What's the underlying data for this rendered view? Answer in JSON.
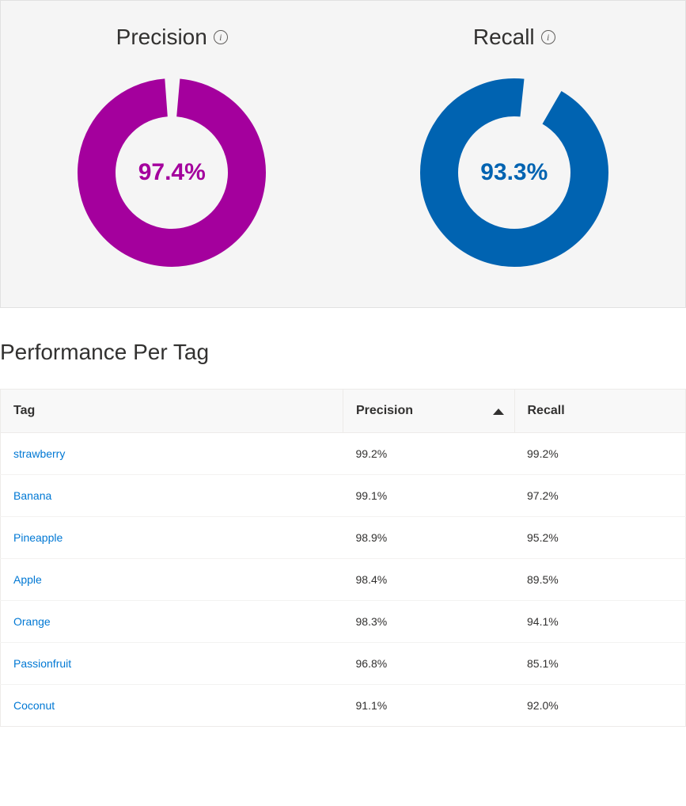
{
  "metrics": {
    "precision": {
      "label": "Precision",
      "value_text": "97.4%",
      "value_pct": 97.4,
      "color": "#a4009d",
      "text_color": "#a4009d",
      "gap_rotation_deg": 5,
      "donut_stroke_width": 48,
      "donut_radius": 95,
      "donut_size": 240,
      "value_fontsize": 30
    },
    "recall": {
      "label": "Recall",
      "value_text": "93.3%",
      "value_pct": 93.3,
      "color": "#0063b1",
      "text_color": "#0063b1",
      "gap_rotation_deg": 30,
      "donut_stroke_width": 48,
      "donut_radius": 95,
      "donut_size": 240,
      "value_fontsize": 30
    },
    "title_fontsize": 28,
    "background_color": "#f5f5f5"
  },
  "table": {
    "section_title": "Performance Per Tag",
    "columns": {
      "tag": "Tag",
      "precision": "Precision",
      "recall": "Recall"
    },
    "sorted_by": "precision",
    "sort_direction": "desc",
    "header_bg": "#f8f8f8",
    "link_color": "#0078d4",
    "rows": [
      {
        "tag": "strawberry",
        "precision": "99.2%",
        "recall": "99.2%"
      },
      {
        "tag": "Banana",
        "precision": "99.1%",
        "recall": "97.2%"
      },
      {
        "tag": "Pineapple",
        "precision": "98.9%",
        "recall": "95.2%"
      },
      {
        "tag": "Apple",
        "precision": "98.4%",
        "recall": "89.5%"
      },
      {
        "tag": "Orange",
        "precision": "98.3%",
        "recall": "94.1%"
      },
      {
        "tag": "Passionfruit",
        "precision": "96.8%",
        "recall": "85.1%"
      },
      {
        "tag": "Coconut",
        "precision": "91.1%",
        "recall": "92.0%"
      }
    ]
  }
}
